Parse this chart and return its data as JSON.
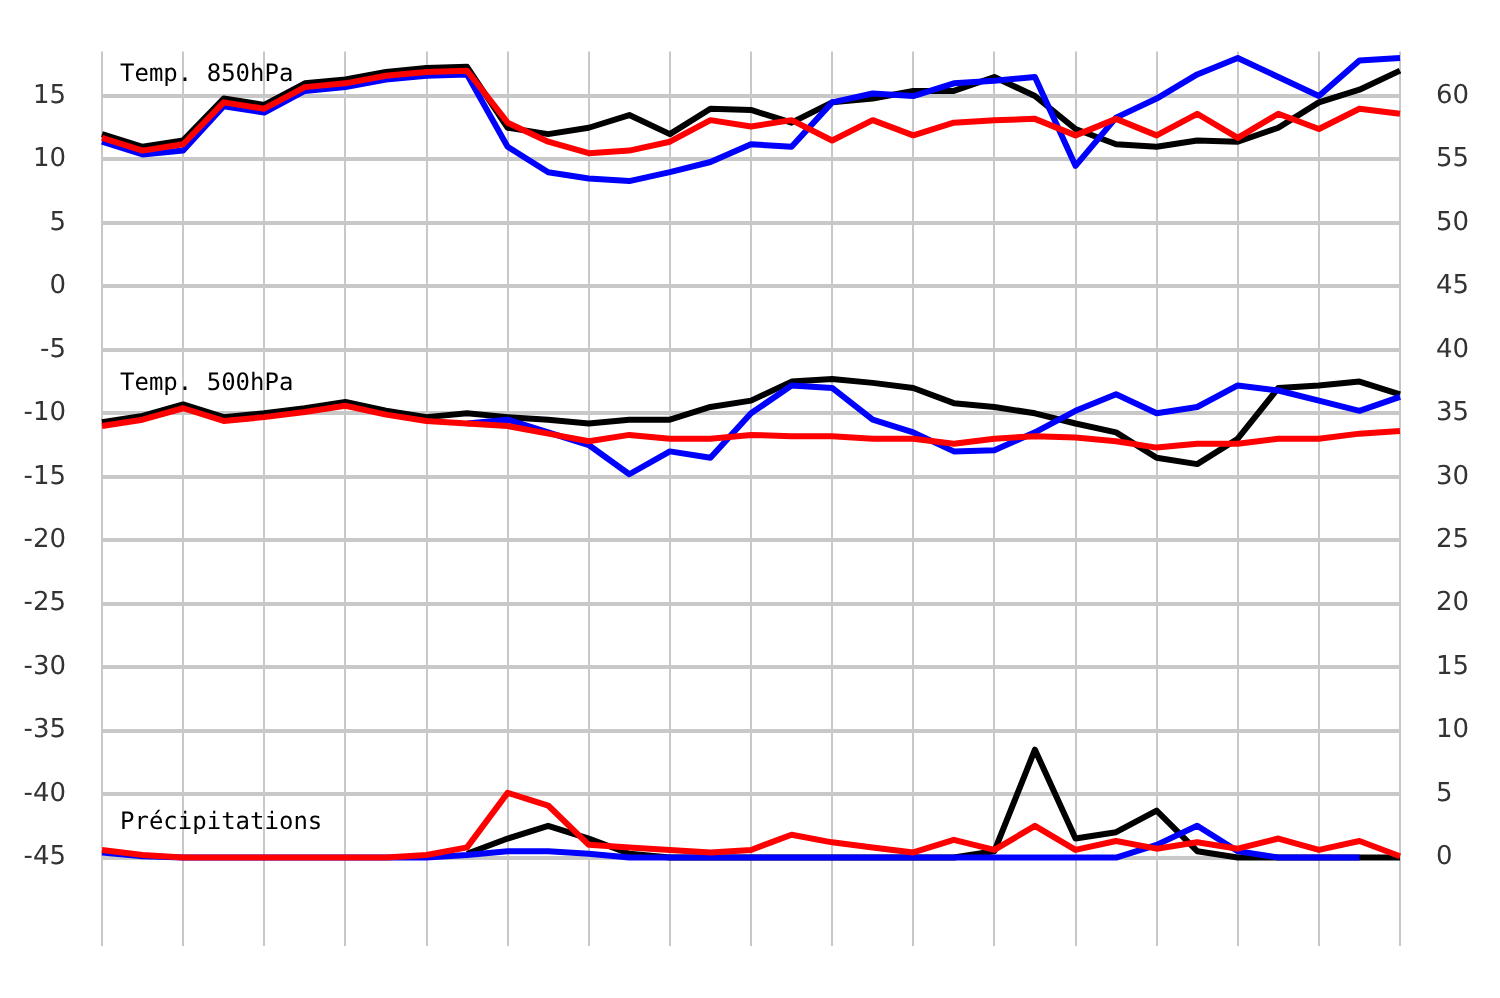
{
  "chart_data": {
    "type": "line",
    "categories": [
      null,
      null,
      null,
      null,
      null,
      null,
      null,
      null,
      null,
      null,
      null,
      null,
      null,
      null,
      null,
      null,
      null,
      null,
      null,
      null,
      null,
      null,
      null,
      null,
      null,
      null,
      null,
      null,
      null,
      null,
      null,
      null,
      null
    ],
    "ylim": [
      -52,
      18.5
    ],
    "yticks": [
      -45,
      -40,
      -35,
      -30,
      -25,
      -20,
      -15,
      -10,
      -5,
      0,
      5,
      10,
      15
    ],
    "y2lim": [
      -7,
      63.5
    ],
    "y2ticks": [
      0,
      5,
      10,
      15,
      20,
      25,
      30,
      35,
      40,
      45,
      50,
      55,
      60
    ],
    "tick_labels": "y",
    "grid": true,
    "legend": false,
    "marker": "none",
    "line_style": "solid",
    "annotations": [
      "Temp. 850hPa",
      "Temp. 500hPa",
      "Précipitations"
    ],
    "series": [
      {
        "color": "#000000",
        "values": [
          12.0,
          11.0,
          11.5,
          14.8,
          14.3,
          16.0,
          16.3,
          16.9,
          17.2,
          17.3,
          12.5,
          12.0,
          12.5,
          13.5,
          12.0,
          14.0,
          13.9,
          12.9,
          14.5,
          14.8,
          15.4,
          15.4,
          16.5,
          15.0,
          12.4,
          11.2,
          11.0,
          11.5,
          11.4,
          12.5,
          14.5,
          15.5,
          17.0
        ]
      },
      {
        "color": "#0000ff",
        "values": [
          11.4,
          10.4,
          10.7,
          14.2,
          13.7,
          15.4,
          15.7,
          16.3,
          16.6,
          16.7,
          11.0,
          9.0,
          8.5,
          8.3,
          9.0,
          9.8,
          11.2,
          11.0,
          14.5,
          15.2,
          15.0,
          16.0,
          16.2,
          16.5,
          9.5,
          13.3,
          14.8,
          16.7,
          18.0,
          16.5,
          15.0,
          17.8,
          18.0
        ]
      },
      {
        "color": "#ff0000",
        "values": [
          11.7,
          10.7,
          11.2,
          14.5,
          14.0,
          15.7,
          16.0,
          16.6,
          16.9,
          17.0,
          12.9,
          11.4,
          10.5,
          10.7,
          11.4,
          13.1,
          12.6,
          13.1,
          11.5,
          13.1,
          11.9,
          12.9,
          13.1,
          13.2,
          11.9,
          13.2,
          11.9,
          13.6,
          11.7,
          13.6,
          12.4,
          14.0,
          13.6
        ]
      },
      {
        "color": "#000000",
        "values": [
          -10.7,
          -10.2,
          -9.3,
          -10.3,
          -10.0,
          -9.6,
          -9.1,
          -9.8,
          -10.3,
          -10.0,
          -10.3,
          -10.5,
          -10.8,
          -10.5,
          -10.5,
          -9.5,
          -9.0,
          -7.5,
          -7.3,
          -7.6,
          -8.0,
          -9.2,
          -9.5,
          -10.0,
          -10.8,
          -11.5,
          -13.5,
          -14.0,
          -12.0,
          -8.0,
          -7.8,
          -7.5,
          -8.5
        ]
      },
      {
        "color": "#0000ff",
        "values": [
          null,
          null,
          null,
          null,
          null,
          null,
          null,
          null,
          null,
          -10.8,
          -10.5,
          -11.5,
          -12.5,
          -14.8,
          -13.0,
          -13.5,
          -10.0,
          -7.8,
          -8.0,
          -10.5,
          -11.5,
          -13.0,
          -12.9,
          -11.5,
          -9.8,
          -8.5,
          -10.0,
          -9.5,
          -7.8,
          -8.2,
          -9.0,
          -9.8,
          -8.7
        ]
      },
      {
        "color": "#ff0000",
        "values": [
          -11.0,
          -10.5,
          -9.6,
          -10.6,
          -10.3,
          -9.9,
          -9.4,
          -10.1,
          -10.6,
          -10.8,
          -11.0,
          -11.6,
          -12.2,
          -11.7,
          -12.0,
          -12.0,
          -11.7,
          -11.8,
          -11.8,
          -12.0,
          -12.0,
          -12.4,
          -12.0,
          -11.8,
          -11.9,
          -12.2,
          -12.7,
          -12.4,
          -12.4,
          -12.0,
          -12.0,
          -11.6,
          -11.4
        ]
      },
      {
        "color": "#000000",
        "axis": "y2",
        "values": [
          null,
          null,
          null,
          null,
          null,
          null,
          null,
          null,
          null,
          0.3,
          1.5,
          2.5,
          1.5,
          0.3,
          0,
          0,
          0,
          0,
          0,
          0,
          0,
          0,
          0.5,
          8.5,
          1.5,
          2.0,
          3.7,
          0.5,
          0,
          0,
          0,
          0,
          0
        ]
      },
      {
        "color": "#0000ff",
        "axis": "y2",
        "values": [
          0.4,
          0.1,
          0,
          0,
          0,
          0,
          0,
          0,
          0,
          0.2,
          0.5,
          0.5,
          0.3,
          0,
          0,
          0,
          0,
          0,
          0,
          0,
          0,
          0,
          0,
          0,
          0,
          0,
          1.0,
          2.5,
          0.5,
          0,
          0,
          0,
          null
        ]
      },
      {
        "color": "#ff0000",
        "axis": "y2",
        "values": [
          0.6,
          0.2,
          0,
          0,
          0,
          0,
          0,
          0,
          0.2,
          0.8,
          5.1,
          4.1,
          1.0,
          0.8,
          0.6,
          0.4,
          0.6,
          1.8,
          1.2,
          0.8,
          0.4,
          1.4,
          0.6,
          2.5,
          0.6,
          1.3,
          0.7,
          1.2,
          0.7,
          1.5,
          0.6,
          1.3,
          0.1
        ]
      }
    ]
  }
}
